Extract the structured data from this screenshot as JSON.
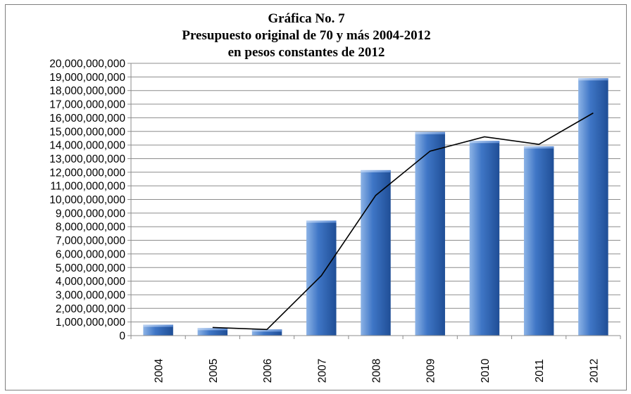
{
  "chart_data": {
    "type": "bar",
    "title_lines": [
      "Gráfica No. 7",
      "Presupuesto original de 70 y más 2004-2012",
      "en pesos constantes de 2012"
    ],
    "categories": [
      "2004",
      "2005",
      "2006",
      "2007",
      "2008",
      "2009",
      "2010",
      "2011",
      "2012"
    ],
    "series": [
      {
        "type": "bar",
        "values": [
          800000000,
          550000000,
          450000000,
          8450000000,
          12150000000,
          14950000000,
          14300000000,
          13900000000,
          18900000000
        ]
      },
      {
        "type": "line",
        "values": [
          null,
          600000000,
          450000000,
          4400000000,
          10300000000,
          13550000000,
          14600000000,
          14050000000,
          16350000000
        ]
      }
    ],
    "y_ticks": [
      "0",
      "1,000,000,000",
      "2,000,000,000",
      "3,000,000,000",
      "4,000,000,000",
      "5,000,000,000",
      "6,000,000,000",
      "7,000,000,000",
      "8,000,000,000",
      "9,000,000,000",
      "10,000,000,000",
      "11,000,000,000",
      "12,000,000,000",
      "13,000,000,000",
      "14,000,000,000",
      "15,000,000,000",
      "16,000,000,000",
      "17,000,000,000",
      "18,000,000,000",
      "19,000,000,000",
      "20,000,000,000"
    ],
    "ylim": [
      0,
      20000000000
    ],
    "y_step": 1000000000,
    "grid": true,
    "colors": {
      "bar_light": "#8cb3e6",
      "bar_mid": "#3f76c6",
      "bar_dark": "#1f4e96",
      "line": "#000000",
      "grid": "#8c8c8c",
      "axis": "#8c8c8c"
    }
  }
}
